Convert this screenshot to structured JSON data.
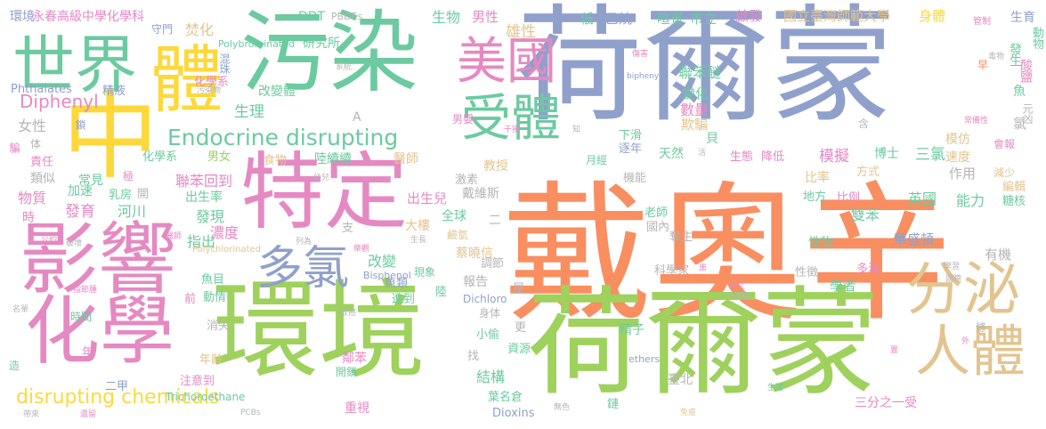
{
  "palette": {
    "orange": "#f98e60",
    "green": "#9fd15d",
    "teal": "#6ccaa0",
    "blue": "#8fa0cb",
    "pink": "#e589c2",
    "yellow": "#fed83b",
    "tan": "#e3c48f",
    "gray": "#b5b5b5"
  },
  "words": {
    "w001": "戴奧辛",
    "w002": "荷爾蒙",
    "w003": "荷爾蒙",
    "w004": "環境",
    "w005": "污染",
    "w006": "中",
    "w007": "特定",
    "w008": "影響",
    "w009": "化學",
    "w010": "世界",
    "w011": "體",
    "w012": "美國",
    "w013": "受體",
    "w014": "分泌",
    "w015": "人體",
    "w016": "多氯",
    "w017": "Endocrine disrupting",
    "w018": "disrupting chemicals",
    "w019": "Diphenyl",
    "w020": "環境",
    "w021": "永春高級中學化學科",
    "w022": "DDT",
    "w023": "PBDEs",
    "w024": "國立臺灣師範大學",
    "w025": "身體",
    "w026": "生育",
    "w027": "管制",
    "w028": "動物",
    "w029": "Polybrominated",
    "w030": "研究所",
    "w031": "生物",
    "w032": "男性",
    "w033": "雄性",
    "w034": "低",
    "w035": "乙烷",
    "w036": "喧賓",
    "w037": "市立",
    "w038": "啟發",
    "w039": "守門",
    "w040": "焚化",
    "w041": "混珠",
    "w042": "化學系",
    "w043": "Phthalates",
    "w044": "精液",
    "w045": "改變體",
    "w046": "女性",
    "w047": "生理",
    "w048": "聯苯醚",
    "w049": "biphenyls",
    "w050": "早",
    "w051": "發生",
    "w052": "酸鹽",
    "w053": "魚",
    "w054": "元凶",
    "w055": "氯",
    "w056": "變化",
    "w057": "數量",
    "w058": "欺騙",
    "w059": "含",
    "w060": "貝",
    "w061": "下滑",
    "w062": "逐年",
    "w063": "天然",
    "w064": "責任",
    "w065": "化學系",
    "w066": "男女",
    "w067": "食物",
    "w068": "陸續續",
    "w069": "醫師",
    "w070": "月經",
    "w071": "生態",
    "w072": "降低",
    "w073": "模擬",
    "w074": "博士",
    "w075": "三氯",
    "w076": "模仿",
    "w077": "速度",
    "w078": "作用",
    "w079": "會報",
    "w080": "減少",
    "w081": "編輯",
    "w082": "糖核",
    "w083": "常見",
    "w084": "類似",
    "w085": "加速",
    "w086": "乳房",
    "w087": "開",
    "w088": "物質",
    "w089": "出生率",
    "w090": "聯苯回到",
    "w091": "激素",
    "w092": "教授",
    "w093": "戴維斯",
    "w094": "機能",
    "w095": "比率",
    "w096": "方式",
    "w097": "地方",
    "w098": "比例",
    "w099": "英國",
    "w100": "能力",
    "w101": "發育",
    "w102": "河川",
    "w103": "發現",
    "w104": "全球",
    "w105": "出生兒",
    "w106": "大樓",
    "w107": "鹼氫",
    "w108": "蔡曉信",
    "w109": "老師",
    "w110": "國內",
    "w111": "奪主",
    "w112": "華盛頓",
    "w113": "性物",
    "w114": "雙苯",
    "w115": "有機",
    "w116": "指出",
    "w117": "濃度",
    "w118": "改變",
    "w119": "魚類",
    "w120": "現象",
    "w121": "報告",
    "w122": "調節",
    "w123": "科學家",
    "w124": "性徵",
    "w125": "學者",
    "w126": "多溴",
    "w127": "時間",
    "w128": "魚目",
    "w129": "動情",
    "w130": "消失",
    "w131": "年齡",
    "w132": "注意到",
    "w133": "二甲",
    "w134": "Trichoroethane",
    "w135": "開鎖",
    "w136": "鄰苯",
    "w137": "重視",
    "w138": "資源",
    "w139": "小偷",
    "w140": "精子",
    "w141": "結構",
    "w142": "臺北",
    "w143": "葉名倉",
    "w144": "Dioxins",
    "w145": "鏈",
    "w146": "三分之一受",
    "w147": "身体",
    "w148": "更",
    "w149": "Dichloro",
    "w150": "進到",
    "w151": "陸",
    "w152": "Bisphenol",
    "w153": "Polychlorinated",
    "w154": "找",
    "w155": "ethers",
    "w156": "條",
    "w157": "屋",
    "w158": "支",
    "w159": "A",
    "w160": "二",
    "w161": "騙",
    "w162": "鎖",
    "w163": "体",
    "w164": "極",
    "w165": "時",
    "w166": "公約",
    "w167": "破壞",
    "w168": "前",
    "w169": "年",
    "w170": "造",
    "w171": "名單",
    "w172": "指節腫",
    "w173": "醫師",
    "w174": "幼兒",
    "w175": "列為",
    "w176": "樂觀",
    "w177": "致癌",
    "w178": "生長",
    "w179": "系統",
    "w180": "污染物",
    "w181": "傷害",
    "w182": "毒物",
    "w183": "常備性",
    "w184": "干擾",
    "w185": "知",
    "w186": "活",
    "w187": "黑",
    "w188": "研究",
    "w189": "生物體",
    "w190": "學習",
    "w191": "國際",
    "w192": "PCBs",
    "w193": "無色",
    "w194": "免疫",
    "w195": "生殖",
    "w196": "外",
    "w197": "男嬰",
    "w198": "帶來",
    "w199": "遺留",
    "w200": "置"
  }
}
